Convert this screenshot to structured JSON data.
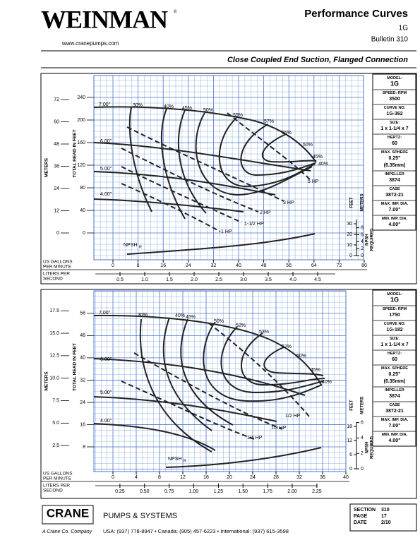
{
  "header": {
    "logo": "WEINMAN",
    "logo_mark": "®",
    "website": "www.cranepumps.com",
    "title": "Performance Curves",
    "model": "1G",
    "bulletin": "Bulletin 310",
    "subtitle": "Close Coupled End Suction, Flanged Connection"
  },
  "charts": [
    {
      "info": [
        {
          "label": "MODEL:",
          "values": [
            "1G"
          ]
        },
        {
          "label": "SPEED: RPM",
          "values": [
            "3500"
          ]
        },
        {
          "label": "CURVE NO.",
          "values": [
            "1G-362"
          ]
        },
        {
          "label": "SIZE:",
          "values": [
            "1 x 1-1/4 x 7"
          ]
        },
        {
          "label": "HERTZ:",
          "values": [
            "60"
          ]
        },
        {
          "label": "MAX. SPHERE",
          "values": [
            "0.25\"",
            "(6.35mm)"
          ]
        },
        {
          "label": "IMPELLER",
          "values": [
            "3874"
          ]
        },
        {
          "label": "CASE",
          "values": [
            "3872-21"
          ]
        },
        {
          "label": "MAX. IMP. DIA.",
          "values": [
            "7.00\""
          ]
        },
        {
          "label": "MIN. IMP. DIA.",
          "values": [
            "4.00\""
          ]
        }
      ],
      "meters_title": "METERS",
      "feet_title": "TOTAL HEAD IN FEET",
      "meter_ticks": [
        72,
        60,
        48,
        36,
        24,
        12,
        0
      ],
      "feet_ticks": [
        240,
        200,
        160,
        120,
        80,
        40,
        0
      ],
      "gpm_title": [
        "US GALLONS",
        "PER MINUTE"
      ],
      "gpm_ticks": [
        0,
        8,
        16,
        24,
        32,
        40,
        48,
        56,
        64,
        72,
        80
      ],
      "lps_title": [
        "LITERS PER",
        "SECOND"
      ],
      "lps_ticks": [
        0.5,
        {
          "value": 1,
          "label": "1.0"
        },
        1.5,
        {
          "value": 2,
          "label": "2.0"
        },
        2.5,
        {
          "value": 3,
          "label": "3.0"
        },
        3.5,
        {
          "value": 4,
          "label": "4.0"
        },
        4.5
      ],
      "npsh_feet_title": "FEET",
      "npsh_meters_title": "METERS",
      "npsh_feet_ticks": [
        30,
        20,
        10,
        0
      ],
      "npsh_meter_ticks": [
        8,
        6,
        4,
        2,
        0
      ],
      "npsh_title": [
        "NPSH",
        "REQUIRED"
      ],
      "npsh": "NPSH",
      "npsh_sub": "R",
      "annotations": [
        "7.00\"",
        "30%",
        "40%",
        "45%",
        "50%",
        "55%",
        "57%",
        "55%",
        "50%",
        "45%",
        "40%",
        "6.00\"",
        "5.00\"",
        "4.00\"",
        "5 HP",
        "3 HP",
        "2 HP",
        "1-1/2 HP",
        "1 HP"
      ]
    },
    {
      "info": [
        {
          "label": "MODEL:",
          "values": [
            "1G"
          ]
        },
        {
          "label": "SPEED: RPM",
          "values": [
            "1750"
          ]
        },
        {
          "label": "CURVE NO.",
          "values": [
            "1G-182"
          ]
        },
        {
          "label": "SIZE:",
          "values": [
            "1 x 1-1/4 x 7"
          ]
        },
        {
          "label": "HERTZ:",
          "values": [
            "60"
          ]
        },
        {
          "label": "MAX. SPHERE",
          "values": [
            "0.25\"",
            "(6.35mm)"
          ]
        },
        {
          "label": "IMPELLER",
          "values": [
            "3874"
          ]
        },
        {
          "label": "CASE",
          "values": [
            "3872-21"
          ]
        },
        {
          "label": "MAX. IMP. DIA.",
          "values": [
            "7.00\""
          ]
        },
        {
          "label": "MIN. IMP. DIA.",
          "values": [
            "4.00\""
          ]
        }
      ],
      "meters_title": "METERS",
      "feet_title": "TOTAL HEAD IN FEET",
      "meter_ticks": [
        17.5,
        {
          "value": 15,
          "label": "15.0"
        },
        12.5,
        {
          "value": 10,
          "label": "10.0"
        },
        7.5,
        {
          "value": 5,
          "label": "5.0"
        },
        2.5
      ],
      "feet_ticks": [
        56,
        48,
        40,
        32,
        24,
        16,
        8
      ],
      "gpm_title": [
        "US GALLONS",
        "PER MINUTE"
      ],
      "gpm_ticks": [
        0,
        4,
        8,
        12,
        16,
        20,
        24,
        28,
        32,
        36,
        40
      ],
      "lps_title": [
        "LITERS PER",
        "SECOND"
      ],
      "lps_ticks": [
        0.25,
        {
          "value": 0.5,
          "label": "0.50"
        },
        0.75,
        {
          "value": 1,
          "label": "1.00"
        },
        1.25,
        {
          "value": 1.5,
          "label": "1.50"
        },
        1.75,
        {
          "value": 2,
          "label": "2.00"
        },
        2.25
      ],
      "npsh_feet_title": "FEET",
      "npsh_meters_title": "METERS",
      "npsh_feet_ticks": [
        18,
        12,
        6,
        0
      ],
      "npsh_meter_ticks": [
        6,
        4,
        2,
        0
      ],
      "npsh_title": [
        "NPSH",
        "REQUIRED"
      ],
      "npsh": "NPSH",
      "npsh_sub": "R",
      "annotations": [
        "7.00\"",
        "30%",
        "40%",
        "45%",
        "50%",
        "52%",
        "53%",
        "52%",
        "50%",
        "45%",
        "40%",
        "6.00\"",
        "5.00\"",
        "4.00\"",
        "1/2 HP",
        "1/3 HP",
        "1/4 HP"
      ]
    }
  ],
  "footer": {
    "logo": "CRANE",
    "division": "PUMPS & SYSTEMS",
    "company": "A Crane Co. Company",
    "contacts": "USA: (937) 778-8947  •  Canada: (905) 457-6223  •  International: (937) 615-3598",
    "section_label": "SECTION",
    "section": "310",
    "page_label": "PAGE",
    "page": "17",
    "date_label": "DATE",
    "date": "2/10"
  }
}
